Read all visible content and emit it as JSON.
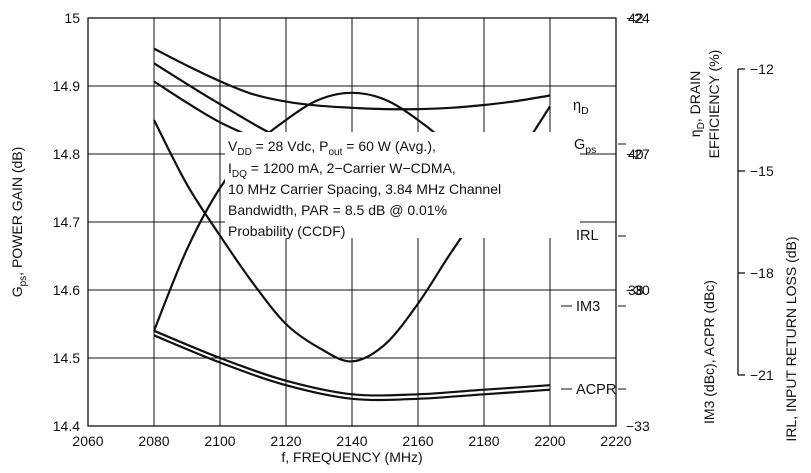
{
  "chart_data": {
    "type": "line",
    "xlabel": "f, FREQUENCY (MHz)",
    "x_ticks": [
      "2060",
      "2080",
      "2100",
      "2120",
      "2140",
      "2160",
      "2180",
      "2200",
      "2220"
    ],
    "xlim": [
      2060,
      2220
    ],
    "left_axis": {
      "label_main": "G",
      "label_sub": "ps",
      "label_rest": ", POWER GAIN (dB)",
      "ylim": [
        14.4,
        15.0
      ],
      "ticks": [
        "14.4",
        "14.5",
        "14.6",
        "14.7",
        "14.8",
        "14.9",
        "15"
      ]
    },
    "right_axis_top": {
      "label_line1_main": "η",
      "label_line1_sub": "D",
      "label_line1_rest": ", DRAIN",
      "label_line2": "EFFICIENCY (%)",
      "ylim": [
        36,
        42
      ],
      "ticks": [
        "38",
        "40",
        "42"
      ]
    },
    "right_axis_bottom": {
      "label": "IM3 (dBc), ACPR (dBc)",
      "ylim": [
        -33,
        -24
      ],
      "ticks": [
        "-33",
        "-30",
        "-27",
        "-24"
      ]
    },
    "irl_axis": {
      "label": "IRL, INPUT RETURN LOSS (dB)",
      "ylim": [
        -22.5,
        -10.5
      ],
      "ticks": [
        "-21",
        "-18",
        "-15",
        "-12"
      ]
    },
    "annotation": {
      "line1_parts": [
        "V",
        "DD",
        " = 28 Vdc, P",
        "out",
        " = 60 W (Avg.),"
      ],
      "line2_parts": [
        "I",
        "DQ",
        " = 1200 mA, 2−Carrier W−CDMA,"
      ],
      "line3": "10 MHz Carrier Spacing, 3.84 MHz Channel",
      "line4": "Bandwidth, PAR = 8.5 dB @ 0.01%",
      "line5": "Probability (CCDF)"
    },
    "series": [
      {
        "name": "G",
        "name_sub": "ps",
        "axis": "left",
        "x": [
          2080,
          2090,
          2100,
          2110,
          2120,
          2130,
          2140,
          2150,
          2160,
          2170,
          2180,
          2190,
          2200
        ],
        "y": [
          14.955,
          14.93,
          14.907,
          14.888,
          14.877,
          14.871,
          14.868,
          14.866,
          14.866,
          14.868,
          14.872,
          14.878,
          14.886
        ]
      },
      {
        "name": "η",
        "name_sub": "D",
        "axis": "right_top",
        "x": [
          2080,
          2090,
          2100,
          2110,
          2120,
          2130,
          2140,
          2150,
          2160,
          2170,
          2180,
          2190,
          2200
        ],
        "y": [
          37.4,
          38.6,
          39.5,
          40.1,
          40.5,
          40.8,
          40.9,
          40.8,
          40.5,
          40.1,
          39.6,
          39.2,
          38.8
        ]
      },
      {
        "name": "IRL",
        "axis": "irl",
        "x": [
          2080,
          2090,
          2100,
          2110,
          2120,
          2130,
          2140,
          2150,
          2160,
          2170,
          2180,
          2190,
          2200
        ],
        "y": [
          -13.5,
          -15.4,
          -16.9,
          -18.3,
          -19.5,
          -20.2,
          -20.6,
          -20.1,
          -18.9,
          -17.4,
          -16.0,
          -14.6,
          -13.1
        ]
      },
      {
        "name": "IM3",
        "axis": "right_bottom",
        "x": [
          2080,
          2100,
          2120,
          2140,
          2160,
          2180,
          2200
        ],
        "y": [
          -25.0,
          -25.9,
          -26.7,
          -27.1,
          -27.1,
          -27.0,
          -26.9
        ]
      },
      {
        "name": "IM3_b",
        "axis": "right_bottom",
        "x": [
          2080,
          2100,
          2120,
          2140,
          2160,
          2180,
          2200
        ],
        "y": [
          -25.4,
          -26.3,
          -26.9,
          -27.3,
          -27.3,
          -27.2,
          -27.2
        ]
      },
      {
        "name": "ACPR",
        "axis": "right_bottom",
        "x": [
          2080,
          2100,
          2120,
          2140,
          2160,
          2180,
          2200
        ],
        "y": [
          -30.9,
          -31.5,
          -32.0,
          -32.3,
          -32.3,
          -32.2,
          -32.1
        ]
      },
      {
        "name": "ACPR_b",
        "axis": "right_bottom",
        "x": [
          2080,
          2100,
          2120,
          2140,
          2160,
          2180,
          2200
        ],
        "y": [
          -31.0,
          -31.6,
          -32.1,
          -32.4,
          -32.4,
          -32.3,
          -32.2
        ]
      }
    ],
    "curve_labels": {
      "eta": [
        "η",
        "D"
      ],
      "gps": [
        "G",
        "ps"
      ],
      "irl": "IRL",
      "im3": "IM3",
      "acpr": "ACPR"
    },
    "grid": true
  }
}
